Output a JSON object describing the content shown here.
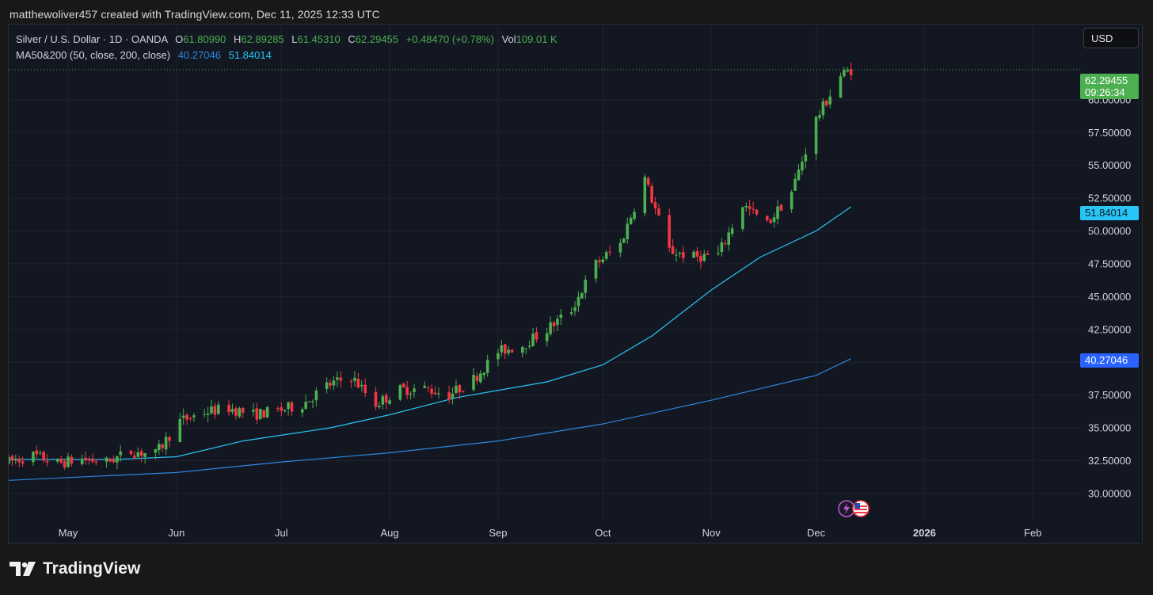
{
  "caption": "matthewoliver457 created with TradingView.com, Dec 11, 2025 12:33 UTC",
  "legend": {
    "symbol": "Silver / U.S. Dollar · 1D · OANDA",
    "o_label": "O",
    "o_value": "61.80990",
    "h_label": "H",
    "h_value": "62.89285",
    "l_label": "L",
    "l_value": "61.45310",
    "c_label": "C",
    "c_value": "62.29455",
    "change": "+0.48470 (+0.78%)",
    "vol_label": "Vol",
    "vol_value": "109.01 K",
    "ma_label": "MA50&200 (50, close, 200, close)",
    "ma200_value": "40.27046",
    "ma50_value": "51.84014"
  },
  "currency": "USD",
  "badges": {
    "last_price": "62.29455",
    "countdown": "09:26:34",
    "ma50": "51.84014",
    "ma200": "40.27046"
  },
  "brand": {
    "name": "TradingView"
  },
  "colors": {
    "background": "#131722",
    "up": "#4caf50",
    "down": "#f23645",
    "ma50": "#29c5f6",
    "ma200": "#2e86de",
    "grid": "#1f2330",
    "axis_text": "#d1d4dc"
  },
  "chart_data": {
    "type": "candlestick",
    "y_axis": {
      "ticks": [
        "30.00000",
        "32.50000",
        "35.00000",
        "37.50000",
        "40.00000",
        "42.50000",
        "45.00000",
        "47.50000",
        "50.00000",
        "52.50000",
        "55.00000",
        "57.50000",
        "60.00000"
      ],
      "range": [
        28.0,
        65.0
      ]
    },
    "x_axis": {
      "ticks": [
        "May",
        "Jun",
        "Jul",
        "Aug",
        "Sep",
        "Oct",
        "Nov",
        "Dec",
        "2026",
        "Feb"
      ],
      "tick_dates": [
        "2025-05-01",
        "2025-06-01",
        "2025-07-01",
        "2025-08-01",
        "2025-09-01",
        "2025-10-01",
        "2025-11-01",
        "2025-12-01",
        "2026-01-01",
        "2026-02-01"
      ],
      "range": [
        "2025-04-14",
        "2026-02-15"
      ]
    },
    "close_series": [
      [
        "2025-04-14",
        32.4
      ],
      [
        "2025-04-21",
        32.9
      ],
      [
        "2025-04-28",
        32.3
      ],
      [
        "2025-05-05",
        32.6
      ],
      [
        "2025-05-12",
        32.4
      ],
      [
        "2025-05-19",
        33.2
      ],
      [
        "2025-05-26",
        33.0
      ],
      [
        "2025-06-02",
        35.5
      ],
      [
        "2025-06-09",
        36.2
      ],
      [
        "2025-06-16",
        36.5
      ],
      [
        "2025-06-23",
        36.0
      ],
      [
        "2025-06-30",
        36.3
      ],
      [
        "2025-07-07",
        36.8
      ],
      [
        "2025-07-14",
        38.2
      ],
      [
        "2025-07-21",
        38.9
      ],
      [
        "2025-07-28",
        36.8
      ],
      [
        "2025-08-04",
        37.9
      ],
      [
        "2025-08-11",
        38.0
      ],
      [
        "2025-08-18",
        37.5
      ],
      [
        "2025-08-25",
        38.7
      ],
      [
        "2025-09-01",
        40.8
      ],
      [
        "2025-09-08",
        41.3
      ],
      [
        "2025-09-15",
        42.5
      ],
      [
        "2025-09-22",
        44.0
      ],
      [
        "2025-09-29",
        47.5
      ],
      [
        "2025-10-06",
        49.0
      ],
      [
        "2025-10-13",
        54.0
      ],
      [
        "2025-10-20",
        48.5
      ],
      [
        "2025-10-27",
        48.0
      ],
      [
        "2025-11-03",
        48.2
      ],
      [
        "2025-11-10",
        52.0
      ],
      [
        "2025-11-17",
        50.5
      ],
      [
        "2025-11-24",
        53.0
      ],
      [
        "2025-12-01",
        58.5
      ],
      [
        "2025-12-08",
        61.8
      ],
      [
        "2025-12-11",
        62.29455
      ]
    ],
    "ma50_series": [
      [
        "2025-04-14",
        32.6
      ],
      [
        "2025-05-15",
        32.6
      ],
      [
        "2025-06-01",
        32.8
      ],
      [
        "2025-06-20",
        34.0
      ],
      [
        "2025-07-15",
        35.0
      ],
      [
        "2025-08-01",
        36.0
      ],
      [
        "2025-08-20",
        37.3
      ],
      [
        "2025-09-15",
        38.5
      ],
      [
        "2025-10-01",
        39.8
      ],
      [
        "2025-10-15",
        42.0
      ],
      [
        "2025-11-01",
        45.5
      ],
      [
        "2025-11-15",
        48.0
      ],
      [
        "2025-12-01",
        50.0
      ],
      [
        "2025-12-11",
        51.84014
      ]
    ],
    "ma200_series": [
      [
        "2025-04-14",
        31.0
      ],
      [
        "2025-06-01",
        31.6
      ],
      [
        "2025-07-01",
        32.4
      ],
      [
        "2025-08-01",
        33.1
      ],
      [
        "2025-09-01",
        34.0
      ],
      [
        "2025-10-01",
        35.3
      ],
      [
        "2025-11-01",
        37.1
      ],
      [
        "2025-12-01",
        39.0
      ],
      [
        "2025-12-11",
        40.27046
      ]
    ]
  }
}
